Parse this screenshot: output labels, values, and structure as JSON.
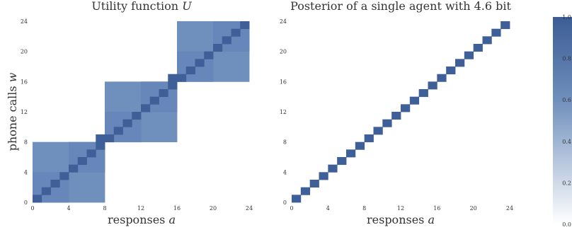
{
  "colors": {
    "strong": "#3f5f98",
    "weak": "#6f8fbc",
    "mid": "#6786b9",
    "colorbar_top": "#3c5c96",
    "colorbar_bottom": "#ffffff"
  },
  "chart_data": [
    {
      "type": "heatmap",
      "title_text": "Utility function ",
      "title_symbol": "U",
      "xlabel_text": "responses ",
      "xlabel_symbol": "a",
      "ylabel_text": "phone calls ",
      "ylabel_symbol": "w",
      "xlim": [
        0,
        24
      ],
      "ylim": [
        0,
        24
      ],
      "xticks": [
        "0",
        "4",
        "8",
        "12",
        "16",
        "20",
        "24"
      ],
      "yticks": [
        "0",
        "4",
        "8",
        "12",
        "16",
        "20",
        "24"
      ],
      "blocks": [
        {
          "x": [
            0,
            8
          ],
          "y": [
            0,
            8
          ]
        },
        {
          "x": [
            8,
            16
          ],
          "y": [
            8,
            16
          ]
        },
        {
          "x": [
            16,
            24
          ],
          "y": [
            16,
            24
          ]
        }
      ],
      "block_base_value": 0.6,
      "subblock_strong_value": 0.75,
      "subblock_weak_value": 0.6,
      "diagonal_value": 1.0,
      "extra_cells": [
        {
          "x": 7,
          "y": 8
        },
        {
          "x": 15,
          "y": 16
        }
      ]
    },
    {
      "type": "heatmap",
      "title_text": "Posterior of a single agent with 4.6 bit",
      "xlabel_text": "responses ",
      "xlabel_symbol": "a",
      "xlim": [
        0,
        24
      ],
      "ylim": [
        0,
        24
      ],
      "xticks": [
        "0",
        "4",
        "8",
        "12",
        "16",
        "20",
        "24"
      ],
      "yticks": [
        "0",
        "4",
        "8",
        "12",
        "16",
        "20",
        "24"
      ],
      "diagonal_value": 1.0,
      "diagonal_count": 24
    }
  ],
  "colorbar": {
    "ticks": [
      "0.0",
      "0.2",
      "0.4",
      "0.6",
      "0.8",
      "1.0"
    ],
    "range": [
      0,
      1
    ]
  }
}
